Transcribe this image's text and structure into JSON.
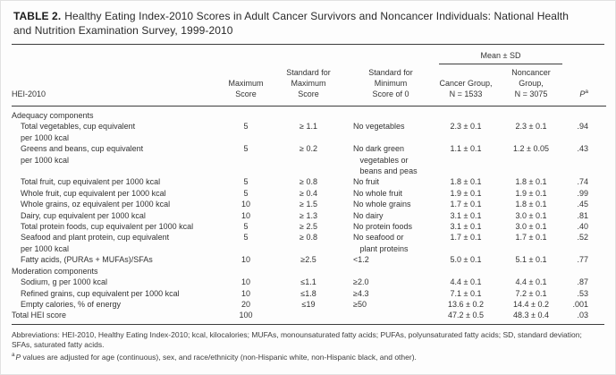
{
  "title": {
    "label": "TABLE 2.",
    "text": "Healthy Eating Index-2010 Scores in Adult Cancer Survivors and Noncancer Individuals: National Health and Nutrition Examination Survey, 1999-2010"
  },
  "header": {
    "spanner": "Mean ± SD",
    "col_hei": "HEI-2010",
    "col_max": "Maximum\nScore",
    "col_std_max": "Standard for\nMaximum\nScore",
    "col_std_min": "Standard for\nMinimum\nScore of 0",
    "col_cancer": "Cancer Group,\nN = 1533",
    "col_noncancer": "Noncancer\nGroup,\nN = 3075",
    "col_p": "P",
    "col_p_sup": "a"
  },
  "rows": [
    {
      "type": "section",
      "label": "Adequacy components",
      "max": "",
      "std_max": "",
      "std_min": "",
      "cancer": "",
      "noncancer": "",
      "p": ""
    },
    {
      "type": "item",
      "label": "Total vegetables, cup equivalent\nper 1000 kcal",
      "max": "5",
      "std_max": "≥ 1.1",
      "std_min": "No vegetables",
      "cancer": "2.3 ± 0.1",
      "noncancer": "2.3 ± 0.1",
      "p": ".94"
    },
    {
      "type": "item",
      "label": "Greens and beans, cup equivalent\nper 1000 kcal",
      "max": "5",
      "std_max": "≥ 0.2",
      "std_min": "No dark green\n   vegetables or\n   beans and peas",
      "cancer": "1.1 ± 0.1",
      "noncancer": "1.2 ± 0.05",
      "p": ".43"
    },
    {
      "type": "item",
      "label": "Total fruit, cup equivalent per 1000 kcal",
      "max": "5",
      "std_max": "≥ 0.8",
      "std_min": "No fruit",
      "cancer": "1.8 ± 0.1",
      "noncancer": "1.8 ± 0.1",
      "p": ".74"
    },
    {
      "type": "item",
      "label": "Whole fruit, cup equivalent per 1000 kcal",
      "max": "5",
      "std_max": "≥ 0.4",
      "std_min": "No whole fruit",
      "cancer": "1.9 ± 0.1",
      "noncancer": "1.9 ± 0.1",
      "p": ".99"
    },
    {
      "type": "item",
      "label": "Whole grains, oz equivalent per 1000 kcal",
      "max": "10",
      "std_max": "≥ 1.5",
      "std_min": "No whole grains",
      "cancer": "1.7 ± 0.1",
      "noncancer": "1.8 ± 0.1",
      "p": ".45"
    },
    {
      "type": "item",
      "label": "Dairy, cup equivalent per 1000 kcal",
      "max": "10",
      "std_max": "≥ 1.3",
      "std_min": "No dairy",
      "cancer": "3.1 ± 0.1",
      "noncancer": "3.0 ± 0.1",
      "p": ".81"
    },
    {
      "type": "item",
      "label": "Total protein foods, cup equivalent per 1000 kcal",
      "max": "5",
      "std_max": "≥ 2.5",
      "std_min": "No protein foods",
      "cancer": "3.1 ± 0.1",
      "noncancer": "3.0 ± 0.1",
      "p": ".40"
    },
    {
      "type": "item",
      "label": "Seafood and plant protein, cup equivalent\nper 1000 kcal",
      "max": "5",
      "std_max": "≥ 0.8",
      "std_min": "No seafood or\n   plant proteins",
      "cancer": "1.7 ± 0.1",
      "noncancer": "1.7 ± 0.1",
      "p": ".52"
    },
    {
      "type": "item",
      "label": "Fatty acids, (PURAs + MUFAs)/SFAs",
      "max": "10",
      "std_max": "≥2.5",
      "std_min": "<1.2",
      "cancer": "5.0 ± 0.1",
      "noncancer": "5.1 ± 0.1",
      "p": ".77"
    },
    {
      "type": "section",
      "label": "Moderation components",
      "max": "",
      "std_max": "",
      "std_min": "",
      "cancer": "",
      "noncancer": "",
      "p": ""
    },
    {
      "type": "item",
      "label": "Sodium, g per 1000 kcal",
      "max": "10",
      "std_max": "≤1.1",
      "std_min": "≥2.0",
      "cancer": "4.4 ± 0.1",
      "noncancer": "4.4 ± 0.1",
      "p": ".87"
    },
    {
      "type": "item",
      "label": "Refined grains, cup equivalent per 1000 kcal",
      "max": "10",
      "std_max": "≤1.8",
      "std_min": "≥4.3",
      "cancer": "7.1 ± 0.1",
      "noncancer": "7.2 ± 0.1",
      "p": ".53"
    },
    {
      "type": "item",
      "label": "Empty calories, % of energy",
      "max": "20",
      "std_max": "≤19",
      "std_min": "≥50",
      "cancer": "13.6 ± 0.2",
      "noncancer": "14.4 ± 0.2",
      "p": ".001"
    },
    {
      "type": "total",
      "label": "Total HEI score",
      "max": "100",
      "std_max": "",
      "std_min": "",
      "cancer": "47.2 ± 0.5",
      "noncancer": "48.3 ± 0.4",
      "p": ".03"
    }
  ],
  "footnotes": {
    "abbreviations": "Abbreviations: HEI-2010, Healthy Eating Index-2010; kcal, kilocalories; MUFAs, monounsaturated fatty acids; PUFAs, polyunsaturated fatty acids; SD, standard deviation; SFAs, saturated fatty acids.",
    "p_note_sup": "a",
    "p_note_label": "P",
    "p_note_text": " values are adjusted for age (continuous), sex, and race/ethnicity (non-Hispanic white, non-Hispanic black, and other)."
  }
}
